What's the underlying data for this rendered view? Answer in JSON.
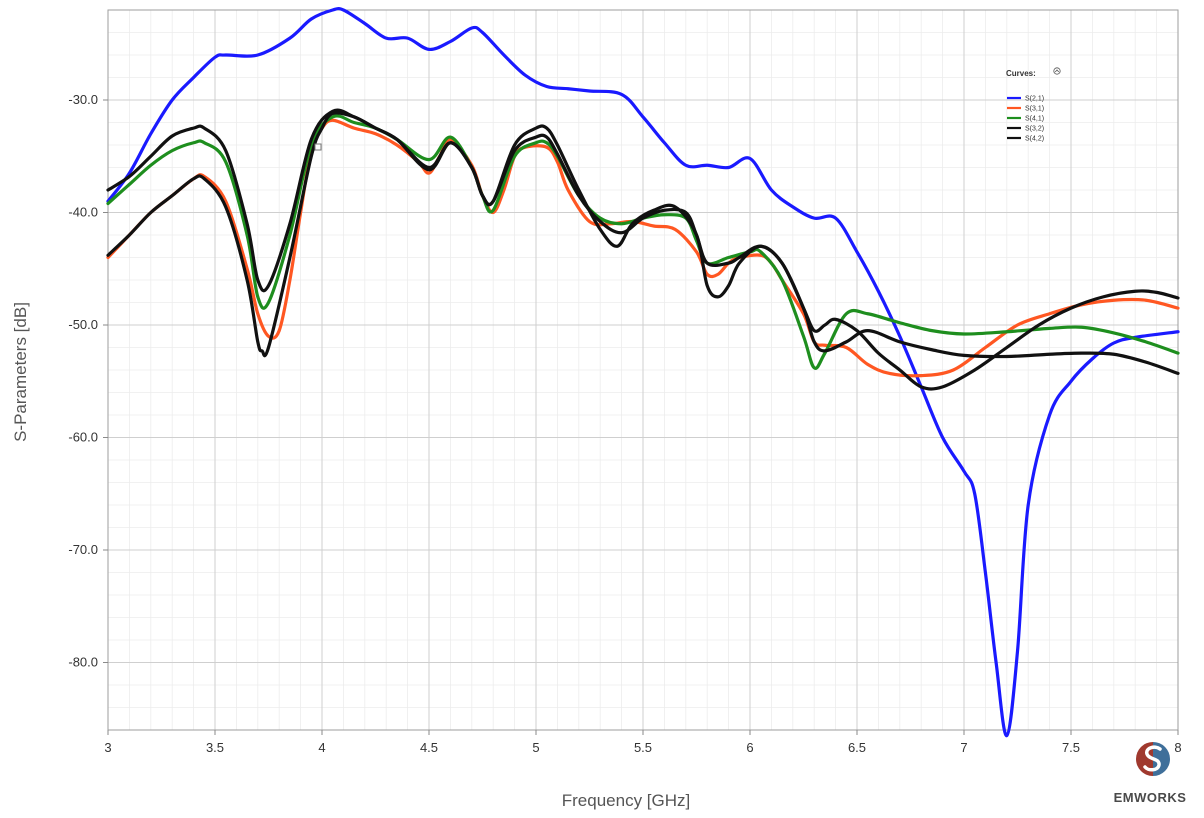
{
  "chart_data": {
    "type": "line",
    "xlabel": "Frequency [GHz]",
    "ylabel": "S-Parameters [dB]",
    "xlim": [
      3,
      8
    ],
    "ylim": [
      -86,
      -22
    ],
    "grid": true,
    "legend_position": "top-right",
    "legend_title": "Curves:",
    "x_ticks": [
      {
        "value": 3,
        "label": "3"
      },
      {
        "value": 3.5,
        "label": "3.5"
      },
      {
        "value": 4,
        "label": "4"
      },
      {
        "value": 4.5,
        "label": "4.5"
      },
      {
        "value": 5,
        "label": "5"
      },
      {
        "value": 5.5,
        "label": "5.5"
      },
      {
        "value": 6,
        "label": "6"
      },
      {
        "value": 6.5,
        "label": "6.5"
      },
      {
        "value": 7,
        "label": "7"
      },
      {
        "value": 7.5,
        "label": "7.5"
      },
      {
        "value": 8,
        "label": "8"
      }
    ],
    "y_ticks": [
      {
        "value": -30,
        "label": "-30.0"
      },
      {
        "value": -40,
        "label": "-40.0"
      },
      {
        "value": -50,
        "label": "-50.0"
      },
      {
        "value": -60,
        "label": "-60.0"
      },
      {
        "value": -70,
        "label": "-70.0"
      },
      {
        "value": -80,
        "label": "-80.0"
      }
    ],
    "series": [
      {
        "name": "S(2,1)",
        "color": "#1a1aff",
        "x": [
          3.0,
          3.1,
          3.2,
          3.3,
          3.4,
          3.5,
          3.55,
          3.7,
          3.85,
          3.95,
          4.05,
          4.1,
          4.2,
          4.3,
          4.4,
          4.5,
          4.6,
          4.7,
          4.75,
          4.85,
          4.95,
          5.05,
          5.15,
          5.25,
          5.4,
          5.5,
          5.6,
          5.7,
          5.8,
          5.9,
          6.0,
          6.1,
          6.2,
          6.3,
          6.4,
          6.5,
          6.6,
          6.7,
          6.8,
          6.9,
          7.0,
          7.05,
          7.1,
          7.15,
          7.2,
          7.25,
          7.3,
          7.4,
          7.5,
          7.6,
          7.7,
          7.8,
          8.0
        ],
        "y": [
          -39.0,
          -36.5,
          -33.0,
          -30.0,
          -28.0,
          -26.2,
          -26.0,
          -26.0,
          -24.5,
          -22.8,
          -22.0,
          -22.0,
          -23.2,
          -24.5,
          -24.5,
          -25.5,
          -24.8,
          -23.6,
          -24.0,
          -26.0,
          -27.8,
          -28.8,
          -29.0,
          -29.2,
          -29.5,
          -31.5,
          -33.8,
          -35.8,
          -35.8,
          -36.0,
          -35.2,
          -38.0,
          -39.5,
          -40.5,
          -40.5,
          -43.5,
          -47.0,
          -51.0,
          -55.5,
          -60.0,
          -63.0,
          -65.0,
          -72.0,
          -80.0,
          -86.5,
          -79.0,
          -66.0,
          -58.0,
          -55.0,
          -53.0,
          -51.6,
          -51.1,
          -50.6
        ]
      },
      {
        "name": "S(3,1)",
        "color": "#ff5722",
        "x": [
          3.0,
          3.1,
          3.2,
          3.3,
          3.4,
          3.45,
          3.55,
          3.65,
          3.7,
          3.75,
          3.8,
          3.85,
          3.9,
          3.95,
          4.0,
          4.05,
          4.15,
          4.25,
          4.35,
          4.45,
          4.5,
          4.55,
          4.6,
          4.7,
          4.75,
          4.8,
          4.85,
          4.9,
          4.95,
          5.05,
          5.1,
          5.15,
          5.25,
          5.35,
          5.45,
          5.55,
          5.65,
          5.75,
          5.8,
          5.85,
          5.9,
          5.95,
          6.05,
          6.1,
          6.15,
          6.25,
          6.3,
          6.35,
          6.45,
          6.55,
          6.65,
          6.8,
          6.95,
          7.1,
          7.25,
          7.4,
          7.55,
          7.7,
          7.85,
          8.0
        ],
        "y": [
          -44.0,
          -42.0,
          -40.0,
          -38.5,
          -37.0,
          -36.8,
          -39.0,
          -45.0,
          -49.0,
          -51.0,
          -50.5,
          -46.0,
          -40.0,
          -34.5,
          -32.5,
          -31.8,
          -32.5,
          -33.0,
          -34.0,
          -35.5,
          -36.5,
          -35.0,
          -33.5,
          -35.8,
          -38.5,
          -40.0,
          -38.0,
          -35.0,
          -34.2,
          -34.2,
          -35.5,
          -38.0,
          -40.8,
          -41.0,
          -40.8,
          -41.2,
          -41.5,
          -43.5,
          -45.5,
          -45.5,
          -44.5,
          -44.0,
          -43.8,
          -44.5,
          -46.0,
          -49.0,
          -51.5,
          -51.8,
          -52.0,
          -53.5,
          -54.3,
          -54.5,
          -54.0,
          -52.0,
          -50.0,
          -49.0,
          -48.2,
          -47.8,
          -47.8,
          -48.5
        ]
      },
      {
        "name": "S(4,1)",
        "color": "#1e8e1e",
        "x": [
          3.0,
          3.1,
          3.2,
          3.3,
          3.4,
          3.45,
          3.55,
          3.65,
          3.7,
          3.75,
          3.85,
          3.95,
          4.05,
          4.15,
          4.25,
          4.35,
          4.5,
          4.6,
          4.7,
          4.75,
          4.8,
          4.9,
          5.0,
          5.05,
          5.1,
          5.2,
          5.3,
          5.4,
          5.5,
          5.6,
          5.7,
          5.75,
          5.8,
          5.9,
          6.0,
          6.05,
          6.15,
          6.25,
          6.3,
          6.35,
          6.45,
          6.55,
          6.7,
          6.85,
          7.0,
          7.2,
          7.4,
          7.55,
          7.7,
          7.85,
          8.0
        ],
        "y": [
          -39.2,
          -37.5,
          -35.8,
          -34.5,
          -33.8,
          -33.8,
          -35.5,
          -42.0,
          -47.5,
          -48.0,
          -42.0,
          -34.0,
          -31.5,
          -32.0,
          -32.5,
          -33.5,
          -35.3,
          -33.3,
          -36.0,
          -38.5,
          -39.8,
          -35.0,
          -33.8,
          -33.8,
          -35.0,
          -38.5,
          -40.5,
          -41.0,
          -40.5,
          -40.2,
          -40.5,
          -42.5,
          -44.5,
          -44.0,
          -43.5,
          -43.5,
          -46.0,
          -51.0,
          -53.8,
          -52.5,
          -49.0,
          -49.0,
          -49.8,
          -50.5,
          -50.8,
          -50.6,
          -50.3,
          -50.2,
          -50.7,
          -51.5,
          -52.5
        ]
      },
      {
        "name": "S(3,2)",
        "color": "#111111",
        "x": [
          3.0,
          3.1,
          3.2,
          3.3,
          3.4,
          3.45,
          3.55,
          3.65,
          3.7,
          3.75,
          3.85,
          3.95,
          4.05,
          4.15,
          4.25,
          4.35,
          4.5,
          4.6,
          4.7,
          4.75,
          4.8,
          4.9,
          5.0,
          5.05,
          5.1,
          5.2,
          5.3,
          5.4,
          5.5,
          5.6,
          5.7,
          5.75,
          5.8,
          5.9,
          5.95,
          6.05,
          6.15,
          6.25,
          6.3,
          6.35,
          6.4,
          6.5,
          6.6,
          6.7,
          6.8,
          6.9,
          7.05,
          7.2,
          7.35,
          7.5,
          7.65,
          7.8,
          7.9,
          8.0
        ],
        "y": [
          -38.0,
          -36.8,
          -35.0,
          -33.2,
          -32.5,
          -32.5,
          -34.5,
          -41.0,
          -46.0,
          -46.5,
          -41.0,
          -33.5,
          -31.0,
          -31.5,
          -32.5,
          -33.5,
          -36.0,
          -33.8,
          -36.0,
          -38.5,
          -39.0,
          -34.5,
          -33.3,
          -33.3,
          -34.8,
          -38.5,
          -40.8,
          -41.8,
          -40.5,
          -39.8,
          -40.0,
          -42.0,
          -44.5,
          -44.5,
          -44.0,
          -43.0,
          -44.5,
          -48.5,
          -50.5,
          -50.0,
          -49.5,
          -50.5,
          -52.5,
          -54.0,
          -55.5,
          -55.5,
          -54.0,
          -52.0,
          -50.0,
          -48.5,
          -47.5,
          -47.0,
          -47.1,
          -47.6
        ]
      },
      {
        "name": "S(4,2)",
        "color": "#111111",
        "x": [
          3.0,
          3.1,
          3.2,
          3.3,
          3.4,
          3.45,
          3.55,
          3.65,
          3.7,
          3.72,
          3.75,
          3.85,
          3.95,
          4.0,
          4.05,
          4.15,
          4.25,
          4.35,
          4.5,
          4.6,
          4.7,
          4.75,
          4.8,
          4.9,
          5.0,
          5.05,
          5.1,
          5.2,
          5.3,
          5.38,
          5.45,
          5.55,
          5.65,
          5.75,
          5.8,
          5.85,
          5.9,
          5.95,
          6.05,
          6.15,
          6.25,
          6.3,
          6.35,
          6.45,
          6.55,
          6.7,
          6.85,
          7.0,
          7.2,
          7.4,
          7.55,
          7.7,
          7.85,
          8.0
        ],
        "y": [
          -43.8,
          -42.0,
          -40.0,
          -38.5,
          -37.0,
          -37.0,
          -39.5,
          -46.0,
          -51.5,
          -52.3,
          -52.0,
          -44.0,
          -35.0,
          -32.5,
          -31.2,
          -31.5,
          -32.5,
          -33.5,
          -36.2,
          -33.8,
          -36.0,
          -38.5,
          -39.0,
          -34.0,
          -32.5,
          -32.5,
          -34.0,
          -38.0,
          -41.5,
          -43.0,
          -41.0,
          -39.8,
          -39.5,
          -42.0,
          -46.5,
          -47.5,
          -46.5,
          -44.5,
          -43.0,
          -44.5,
          -48.5,
          -51.5,
          -52.3,
          -51.5,
          -50.5,
          -51.5,
          -52.2,
          -52.7,
          -52.8,
          -52.6,
          -52.5,
          -52.6,
          -53.3,
          -54.3
        ]
      }
    ]
  },
  "logo": {
    "text": "EMWORKS",
    "colors": {
      "left": "#a0392e",
      "right": "#3f6f9a"
    }
  }
}
